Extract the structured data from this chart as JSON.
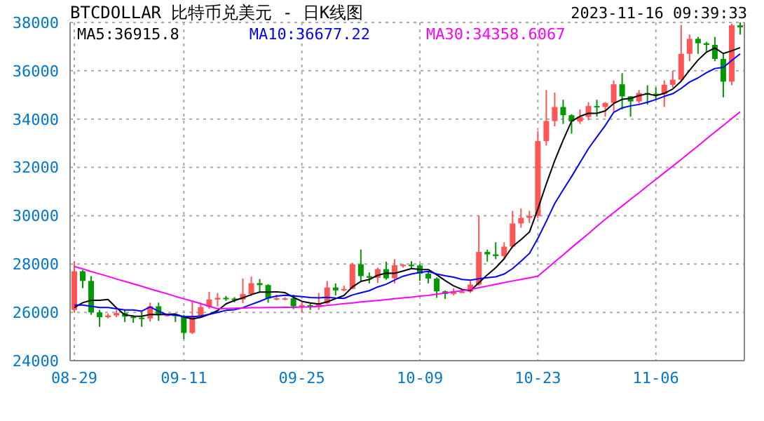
{
  "chart_data": {
    "type": "candlestick",
    "title": "BTCDOLLAR  比特币兑美元 - 日K线图",
    "subtitle": "2023-11-16 09:39:33",
    "categories": [
      "08-29",
      null,
      null,
      null,
      null,
      null,
      null,
      null,
      null,
      null,
      null,
      null,
      null,
      "09-11",
      null,
      null,
      null,
      null,
      null,
      null,
      null,
      null,
      null,
      null,
      null,
      null,
      null,
      "09-25",
      null,
      null,
      null,
      null,
      null,
      null,
      null,
      null,
      null,
      null,
      null,
      null,
      null,
      "10-09",
      null,
      null,
      null,
      null,
      null,
      null,
      null,
      null,
      null,
      null,
      null,
      null,
      null,
      "10-23",
      null,
      null,
      null,
      null,
      null,
      null,
      null,
      null,
      null,
      null,
      null,
      null,
      null,
      "11-06",
      null,
      null,
      null,
      null,
      null,
      null,
      null,
      null,
      null,
      null
    ],
    "ohlc": [
      [
        26100,
        28100,
        26000,
        27700
      ],
      [
        27700,
        27750,
        27000,
        27300
      ],
      [
        27300,
        27500,
        25900,
        26000
      ],
      [
        26000,
        26100,
        25400,
        25800
      ],
      [
        25800,
        25950,
        25750,
        25870
      ],
      [
        25870,
        26100,
        25800,
        25970
      ],
      [
        25970,
        26100,
        25600,
        25820
      ],
      [
        25820,
        25880,
        25570,
        25780
      ],
      [
        25780,
        26000,
        25400,
        25750
      ],
      [
        25750,
        26400,
        25620,
        26250
      ],
      [
        26250,
        26400,
        25650,
        25900
      ],
      [
        25900,
        25950,
        25820,
        25900
      ],
      [
        25900,
        25950,
        25600,
        25840
      ],
      [
        25840,
        25900,
        24900,
        25150
      ],
      [
        25150,
        26500,
        25100,
        25850
      ],
      [
        25850,
        26400,
        25770,
        26220
      ],
      [
        26220,
        26850,
        26150,
        26530
      ],
      [
        26530,
        26800,
        26250,
        26600
      ],
      [
        26600,
        26680,
        26480,
        26570
      ],
      [
        26570,
        26630,
        26410,
        26530
      ],
      [
        26530,
        27400,
        26380,
        26760
      ],
      [
        26760,
        27480,
        26680,
        27210
      ],
      [
        27210,
        27380,
        26850,
        27130
      ],
      [
        27130,
        27160,
        26400,
        26570
      ],
      [
        26570,
        26730,
        26500,
        26580
      ],
      [
        26580,
        26630,
        26500,
        26580
      ],
      [
        26580,
        26730,
        26130,
        26250
      ],
      [
        26250,
        26430,
        26000,
        26300
      ],
      [
        26300,
        26390,
        26100,
        26220
      ],
      [
        26220,
        26800,
        26100,
        26370
      ],
      [
        26370,
        27300,
        26350,
        27030
      ],
      [
        27030,
        27200,
        26700,
        26910
      ],
      [
        26910,
        27100,
        26880,
        26970
      ],
      [
        26970,
        28050,
        26960,
        27990
      ],
      [
        27990,
        28600,
        27300,
        27500
      ],
      [
        27500,
        27650,
        27200,
        27430
      ],
      [
        27430,
        27850,
        27220,
        27790
      ],
      [
        27790,
        28100,
        27350,
        27410
      ],
      [
        27410,
        28200,
        27200,
        27950
      ],
      [
        27950,
        28000,
        27850,
        27970
      ],
      [
        27970,
        28120,
        27800,
        27940
      ],
      [
        27940,
        28000,
        27300,
        27600
      ],
      [
        27600,
        27700,
        27200,
        27400
      ],
      [
        27400,
        27450,
        26600,
        26870
      ],
      [
        26870,
        26900,
        26550,
        26760
      ],
      [
        26760,
        27000,
        26700,
        26860
      ],
      [
        26860,
        26950,
        26800,
        26860
      ],
      [
        26860,
        27300,
        26800,
        27150
      ],
      [
        27150,
        30000,
        27100,
        28500
      ],
      [
        28500,
        28600,
        28100,
        28400
      ],
      [
        28400,
        28900,
        28200,
        28330
      ],
      [
        28330,
        28900,
        28200,
        28720
      ],
      [
        28720,
        30200,
        28650,
        29680
      ],
      [
        29680,
        30300,
        29500,
        29910
      ],
      [
        29910,
        30200,
        29700,
        29990
      ],
      [
        29990,
        33500,
        29900,
        33090
      ],
      [
        33090,
        35200,
        32900,
        33920
      ],
      [
        33920,
        35100,
        33700,
        34500
      ],
      [
        34500,
        34800,
        33800,
        34160
      ],
      [
        34160,
        34200,
        33400,
        33900
      ],
      [
        33900,
        34400,
        33800,
        34090
      ],
      [
        34090,
        34700,
        33950,
        34540
      ],
      [
        34540,
        34800,
        34100,
        34500
      ],
      [
        34500,
        34700,
        34100,
        34670
      ],
      [
        34670,
        35600,
        34300,
        35440
      ],
      [
        35440,
        35900,
        34400,
        34940
      ],
      [
        34940,
        34950,
        34100,
        34730
      ],
      [
        34730,
        35200,
        34650,
        35080
      ],
      [
        35080,
        35400,
        34600,
        35050
      ],
      [
        35050,
        35300,
        34800,
        35040
      ],
      [
        35040,
        35600,
        34500,
        35420
      ],
      [
        35420,
        36000,
        35300,
        35630
      ],
      [
        35630,
        37900,
        35600,
        36700
      ],
      [
        36700,
        37500,
        36400,
        37320
      ],
      [
        37320,
        37400,
        36700,
        37140
      ],
      [
        37140,
        37200,
        36800,
        37070
      ],
      [
        37070,
        37400,
        36400,
        36490
      ],
      [
        36490,
        36700,
        34900,
        35550
      ],
      [
        35550,
        37950,
        35400,
        37880
      ],
      [
        37880,
        38000,
        37500,
        37800
      ]
    ],
    "colors": [
      "#ff5555",
      "#009900",
      "#009900",
      "#009900",
      "#ff5555",
      "#ff5555",
      "#009900",
      "#009900",
      "#009900",
      "#ff5555",
      "#009900",
      "#ff5555",
      "#009900",
      "#009900",
      "#ff5555",
      "#ff5555",
      "#ff5555",
      "#ff5555",
      "#009900",
      "#009900",
      "#ff5555",
      "#ff5555",
      "#009900",
      "#009900",
      "#ff5555",
      "#ff5555",
      "#009900",
      "#ff5555",
      "#009900",
      "#ff5555",
      "#ff5555",
      "#009900",
      "#ff5555",
      "#ff5555",
      "#009900",
      "#009900",
      "#ff5555",
      "#009900",
      "#ff5555",
      "#ff5555",
      "#009900",
      "#009900",
      "#009900",
      "#009900",
      "#009900",
      "#ff5555",
      "#ff5555",
      "#ff5555",
      "#ff5555",
      "#009900",
      "#009900",
      "#ff5555",
      "#ff5555",
      "#ff5555",
      "#ff5555",
      "#ff5555",
      "#ff5555",
      "#ff5555",
      "#009900",
      "#009900",
      "#ff5555",
      "#ff5555",
      "#009900",
      "#ff5555",
      "#ff5555",
      "#009900",
      "#009900",
      "#ff5555",
      "#009900",
      "#009900",
      "#ff5555",
      "#ff5555",
      "#ff5555",
      "#ff5555",
      "#009900",
      "#009900",
      "#009900",
      "#009900",
      "#ff5555",
      "#009900"
    ],
    "series": [
      {
        "name": "MA5:36915.8",
        "type": "line",
        "color": "#000000",
        "values": [
          26200,
          26400,
          26500,
          26500,
          26534,
          26188,
          25892,
          25848,
          25838,
          25914,
          25900,
          25916,
          25928,
          25808,
          25728,
          25792,
          25918,
          26070,
          26354,
          26490,
          26598,
          26734,
          26840,
          26840,
          26850,
          26814,
          26622,
          26456,
          26386,
          26344,
          26434,
          26566,
          26700,
          27054,
          27280,
          27360,
          27536,
          27624,
          27616,
          27710,
          27812,
          27774,
          27772,
          27556,
          27314,
          27098,
          26950,
          26900,
          27226,
          27554,
          27848,
          28220,
          28726,
          29008,
          29326,
          30278,
          31318,
          32282,
          33132,
          33914,
          34114,
          34238,
          34238,
          34340,
          34648,
          34818,
          34856,
          34972,
          35048,
          34968,
          35064,
          35244,
          35568,
          36022,
          36442,
          36772,
          36944,
          36714,
          36826,
          36958
        ]
      },
      {
        "name": "MA10:36677.22",
        "type": "line",
        "color": "#0000ff",
        "values": [
          26300,
          26300,
          26250,
          26200,
          26200,
          26150,
          26100,
          26100,
          26050,
          26224,
          26044,
          25904,
          25888,
          25823,
          25821,
          25846,
          25917,
          25999,
          26081,
          26109,
          26195,
          26326,
          26455,
          26597,
          26670,
          26706,
          26678,
          26648,
          26613,
          26597,
          26624,
          26594,
          26578,
          26720,
          26812,
          26897,
          27051,
          27162,
          27335,
          27495,
          27586,
          27655,
          27698,
          27586,
          27512,
          27455,
          27362,
          27336,
          27391,
          27434,
          27473,
          27585,
          27813,
          28117,
          28440,
          29063,
          29769,
          30504,
          31070,
          31620,
          32196,
          32778,
          33260,
          33736,
          34281,
          34466,
          34547,
          34605,
          34694,
          34808,
          34941,
          35050,
          35270,
          35535,
          35705,
          35918,
          36094,
          36141,
          36424,
          36700
        ]
      },
      {
        "name": "MA30:34358.6067",
        "type": "line",
        "color": "#ff00ff",
        "values": [
          27900,
          27800,
          27690,
          27590,
          27490,
          27380,
          27280,
          27180,
          27080,
          26970,
          26870,
          26770,
          26660,
          26560,
          26460,
          26360,
          26250,
          26150,
          26160,
          26170,
          26180,
          26190,
          26190,
          26200,
          26200,
          26210,
          26210,
          26220,
          26220,
          26250,
          26290,
          26320,
          26360,
          26390,
          26430,
          26460,
          26490,
          26530,
          26560,
          26600,
          26630,
          26670,
          26700,
          26750,
          26800,
          26850,
          26900,
          26950,
          27020,
          27090,
          27160,
          27230,
          27300,
          27360,
          27430,
          27500,
          27790,
          28090,
          28380,
          28680,
          28970,
          29260,
          29560,
          29850,
          30130,
          30400,
          30680,
          30950,
          31230,
          31500,
          31780,
          32050,
          32330,
          32610,
          32890,
          33180,
          33460,
          33740,
          34020,
          34300
        ]
      }
    ],
    "ylim": [
      24000,
      38000
    ],
    "yticks": [
      24000,
      26000,
      28000,
      30000,
      32000,
      34000,
      36000,
      38000
    ],
    "grid": true,
    "legend": "top left",
    "marker": "none",
    "line_style": "solid"
  }
}
